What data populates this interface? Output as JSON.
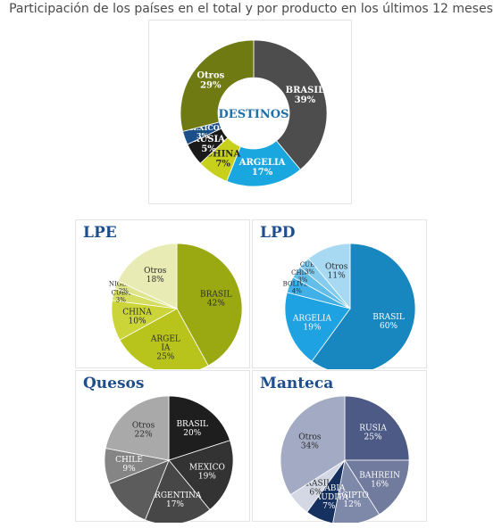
{
  "title": "Participación de los países en el total y por producto en los últimos 12 meses",
  "chart_data": [
    {
      "type": "pie",
      "variant": "donut",
      "title": "DESTINOS",
      "slices": [
        {
          "label": "BRASIL",
          "pct": "39%",
          "value": 39,
          "color": "#4d4d4d"
        },
        {
          "label": "ARGELIA",
          "pct": "17%",
          "value": 17,
          "color": "#1aa7e0"
        },
        {
          "label": "CHINA",
          "pct": "7%",
          "value": 7,
          "color": "#c7d11c"
        },
        {
          "label": "RUSIA",
          "pct": "5%",
          "value": 5,
          "color": "#1a1a1a"
        },
        {
          "label": "MÉXICO",
          "pct": "3%",
          "value": 3,
          "color": "#1b4f8a"
        },
        {
          "label": "Otros",
          "pct": "29%",
          "value": 29,
          "color": "#6f7a12"
        }
      ]
    },
    {
      "type": "pie",
      "title": "LPE",
      "slices": [
        {
          "label": "BRASIL",
          "pct": "42%",
          "value": 42,
          "color": "#9aa812"
        },
        {
          "label": "ARGEL IA",
          "pct": "25%",
          "value": 25,
          "color": "#b8c41c"
        },
        {
          "label": "CHINA",
          "pct": "10%",
          "value": 10,
          "color": "#cbd53a"
        },
        {
          "label": "CUBA",
          "pct": "3%",
          "value": 3,
          "color": "#d5dd62"
        },
        {
          "label": "NIGERIA",
          "pct": "2%",
          "value": 2,
          "color": "#dfe58c"
        },
        {
          "label": "Otros",
          "pct": "18%",
          "value": 18,
          "color": "#e8ecb4"
        }
      ]
    },
    {
      "type": "pie",
      "title": "LPD",
      "slices": [
        {
          "label": "BRASIL",
          "pct": "60%",
          "value": 60,
          "color": "#1886bf"
        },
        {
          "label": "ARGELIA",
          "pct": "19%",
          "value": 19,
          "color": "#1fa2e2"
        },
        {
          "label": "BOLIVIA",
          "pct": "4%",
          "value": 4,
          "color": "#40b0e6"
        },
        {
          "label": "CHINA",
          "pct": "3%",
          "value": 3,
          "color": "#62bde9"
        },
        {
          "label": "CUBA",
          "pct": "3%",
          "value": 3,
          "color": "#84cbee"
        },
        {
          "label": "Otros",
          "pct": "11%",
          "value": 11,
          "color": "#a7d9f2"
        }
      ]
    },
    {
      "type": "pie",
      "title": "Quesos",
      "slices": [
        {
          "label": "BRASIL",
          "pct": "20%",
          "value": 20,
          "color": "#1e1e1e"
        },
        {
          "label": "MEXICO",
          "pct": "19%",
          "value": 19,
          "color": "#333333"
        },
        {
          "label": "ARGENTINA",
          "pct": "17%",
          "value": 17,
          "color": "#474747"
        },
        {
          "label": "",
          "pct": "",
          "value": 13,
          "color": "#5c5c5c"
        },
        {
          "label": "CHILE",
          "pct": "9%",
          "value": 9,
          "color": "#858585"
        },
        {
          "label": "Otros",
          "pct": "22%",
          "value": 22,
          "color": "#a9a9a9"
        }
      ]
    },
    {
      "type": "pie",
      "title": "Manteca",
      "slices": [
        {
          "label": "RUSIA",
          "pct": "25%",
          "value": 25,
          "color": "#4d5a86"
        },
        {
          "label": "BAHREIN",
          "pct": "16%",
          "value": 16,
          "color": "#717b9e"
        },
        {
          "label": "EGIPTO",
          "pct": "12%",
          "value": 12,
          "color": "#7e88a9"
        },
        {
          "label": "ARABIA SAUDITA",
          "pct": "7%",
          "value": 7,
          "color": "#16305f"
        },
        {
          "label": "BRASIL",
          "pct": "6%",
          "value": 6,
          "color": "#d3d8e4"
        },
        {
          "label": "Otros",
          "pct": "34%",
          "value": 34,
          "color": "#a3abc4"
        }
      ]
    }
  ]
}
